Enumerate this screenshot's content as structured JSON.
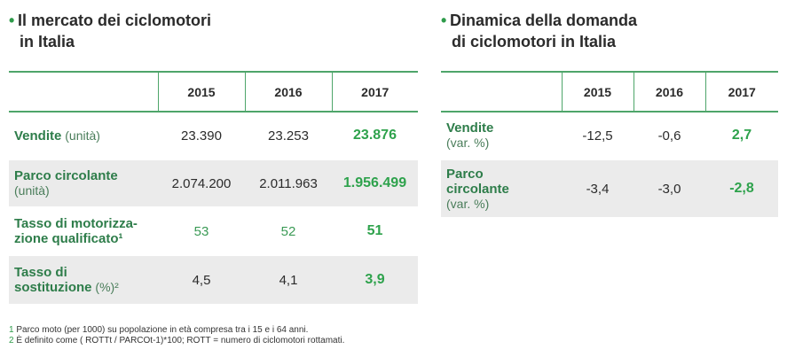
{
  "left": {
    "title_line1": "Il mercato dei ciclomotori",
    "title_line2": "in Italia",
    "headers": [
      "2015",
      "2016",
      "2017"
    ],
    "rows": [
      {
        "label_bold": "Vendite",
        "label_normal": " (unità)",
        "label_bold2": "",
        "label_normal2": "",
        "values": [
          "23.390",
          "23.253",
          "23.876"
        ]
      },
      {
        "label_bold": "Parco circolante",
        "label_normal": "",
        "label_bold2": "",
        "label_normal2": "(unità)",
        "values": [
          "2.074.200",
          "2.011.963",
          "1.956.499"
        ]
      },
      {
        "label_bold": "Tasso di motorizza-",
        "label_normal": "",
        "label_bold2": "zione qualificato¹",
        "label_normal2": "",
        "values": [
          "53",
          "52",
          "51"
        ]
      },
      {
        "label_bold": "Tasso di",
        "label_normal": "",
        "label_bold2": "sostituzione",
        "label_normal2": " (%)²",
        "values": [
          "4,5",
          "4,1",
          "3,9"
        ]
      }
    ]
  },
  "right": {
    "title_line1": "Dinamica della domanda",
    "title_line2": "di ciclomotori in Italia",
    "headers": [
      "2015",
      "2016",
      "2017"
    ],
    "rows": [
      {
        "label_bold": "Vendite",
        "label_bold2": "",
        "label_normal": "(var. %)",
        "values": [
          "-12,5",
          "-0,6",
          "2,7"
        ]
      },
      {
        "label_bold": "Parco",
        "label_bold2": "circolante",
        "label_normal": "(var. %)",
        "values": [
          "-3,4",
          "-3,0",
          "-2,8"
        ]
      }
    ]
  },
  "footnotes": [
    {
      "num": "1",
      "text": " Parco moto (per 1000) su popolazione in età compresa tra i 15 e i 64 anni."
    },
    {
      "num": "2",
      "text": " È definito come ( ROTTt / PARCOt-1)*100; ROTT = numero di ciclomotori rottamati."
    }
  ],
  "colors": {
    "accent": "#2e9b4a",
    "rule": "#4ea56a",
    "shade": "#ebebeb"
  }
}
